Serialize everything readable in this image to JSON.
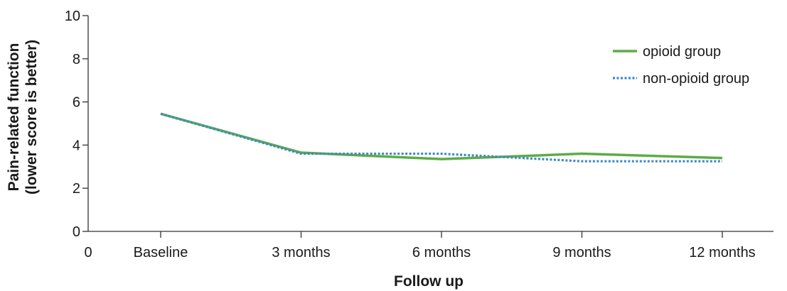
{
  "chart_data": {
    "type": "line",
    "title": "",
    "xlabel": "Follow up",
    "ylabel": [
      "Pain-related function",
      "(lower score is better)"
    ],
    "x_origin_label": "0",
    "categories": [
      "Baseline",
      "3 months",
      "6 months",
      "9 months",
      "12 months"
    ],
    "yticks": [
      "0",
      "2",
      "4",
      "6",
      "8",
      "10"
    ],
    "ylim": [
      0,
      10
    ],
    "grid": false,
    "legend_position": "top-right",
    "series": [
      {
        "name": "opioid group",
        "values": [
          5.45,
          3.65,
          3.35,
          3.6,
          3.4
        ],
        "color": "#5dac46",
        "style": "solid"
      },
      {
        "name": "non-opioid group",
        "values": [
          5.45,
          3.6,
          3.6,
          3.25,
          3.25
        ],
        "color": "#3f88c5",
        "style": "dotted"
      }
    ]
  }
}
